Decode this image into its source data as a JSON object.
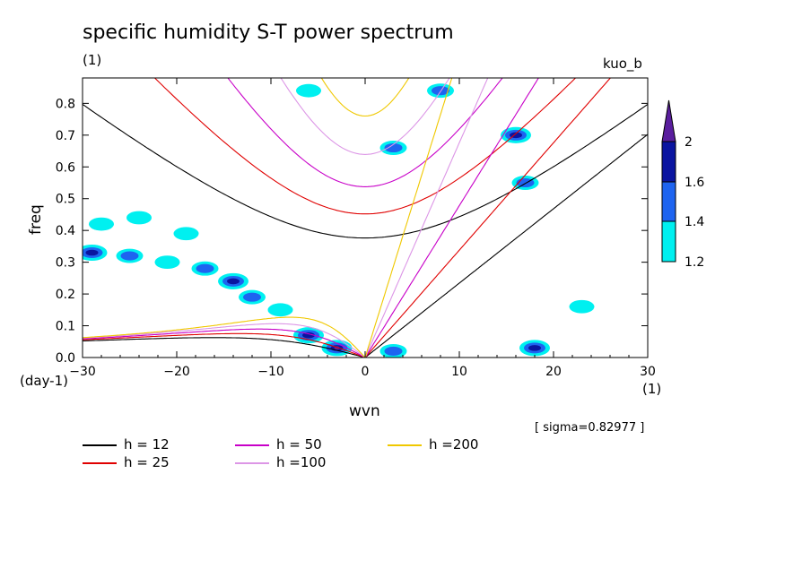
{
  "chart_data": {
    "type": "contour",
    "title": "specific humidity S-T power spectrum",
    "subtitle_left": "(1)",
    "subtitle_right": "kuo_b",
    "xlabel": "wvn",
    "ylabel": "freq",
    "x_unit": "(1)",
    "y_unit": "(day-1)",
    "sigma_note": "[ sigma=0.82977 ]",
    "xlim": [
      -30,
      30
    ],
    "ylim": [
      0,
      0.88
    ],
    "x_ticks": [
      "−30",
      "−20",
      "−10",
      "0",
      "10",
      "20",
      "30"
    ],
    "x_tick_values": [
      -30,
      -20,
      -10,
      0,
      10,
      20,
      30
    ],
    "y_ticks": [
      "0.0",
      "0.1",
      "0.2",
      "0.3",
      "0.4",
      "0.5",
      "0.6",
      "0.7",
      "0.8"
    ],
    "y_tick_values": [
      0,
      0.1,
      0.2,
      0.3,
      0.4,
      0.5,
      0.6,
      0.7,
      0.8
    ],
    "colorbar": {
      "levels": [
        "1.2",
        "1.4",
        "1.6",
        "2"
      ],
      "colors": [
        "#00f0f0",
        "#1e64f0",
        "#0a14a0",
        "#5a1e9e"
      ]
    },
    "series": [
      {
        "name": "h = 12",
        "h": 12,
        "color": "#000000"
      },
      {
        "name": "h = 25",
        "h": 25,
        "color": "#e00000"
      },
      {
        "name": "h = 50",
        "h": 50,
        "color": "#c800c8"
      },
      {
        "name": "h =100",
        "h": 100,
        "color": "#dc96e6"
      },
      {
        "name": "h =200",
        "h": 200,
        "color": "#f0c800"
      }
    ],
    "contour_regions": [
      {
        "x": -28,
        "y": 0.42,
        "level": 1.2
      },
      {
        "x": -29,
        "y": 0.33,
        "level": 1.6
      },
      {
        "x": -25,
        "y": 0.32,
        "level": 1.4
      },
      {
        "x": -21,
        "y": 0.3,
        "level": 1.2
      },
      {
        "x": -17,
        "y": 0.28,
        "level": 1.4
      },
      {
        "x": -14,
        "y": 0.24,
        "level": 1.6
      },
      {
        "x": -12,
        "y": 0.19,
        "level": 1.4
      },
      {
        "x": -9,
        "y": 0.15,
        "level": 1.2
      },
      {
        "x": -6,
        "y": 0.07,
        "level": 1.6
      },
      {
        "x": -3,
        "y": 0.03,
        "level": 2.0
      },
      {
        "x": 3,
        "y": 0.02,
        "level": 1.4
      },
      {
        "x": 18,
        "y": 0.03,
        "level": 1.6
      },
      {
        "x": 16,
        "y": 0.7,
        "level": 1.6
      },
      {
        "x": 17,
        "y": 0.55,
        "level": 1.4
      },
      {
        "x": 3,
        "y": 0.66,
        "level": 1.4
      },
      {
        "x": -6,
        "y": 0.84,
        "level": 1.2
      },
      {
        "x": 8,
        "y": 0.84,
        "level": 1.4
      },
      {
        "x": -19,
        "y": 0.39,
        "level": 1.2
      },
      {
        "x": -24,
        "y": 0.44,
        "level": 1.2
      },
      {
        "x": 23,
        "y": 0.16,
        "level": 1.2
      }
    ]
  }
}
